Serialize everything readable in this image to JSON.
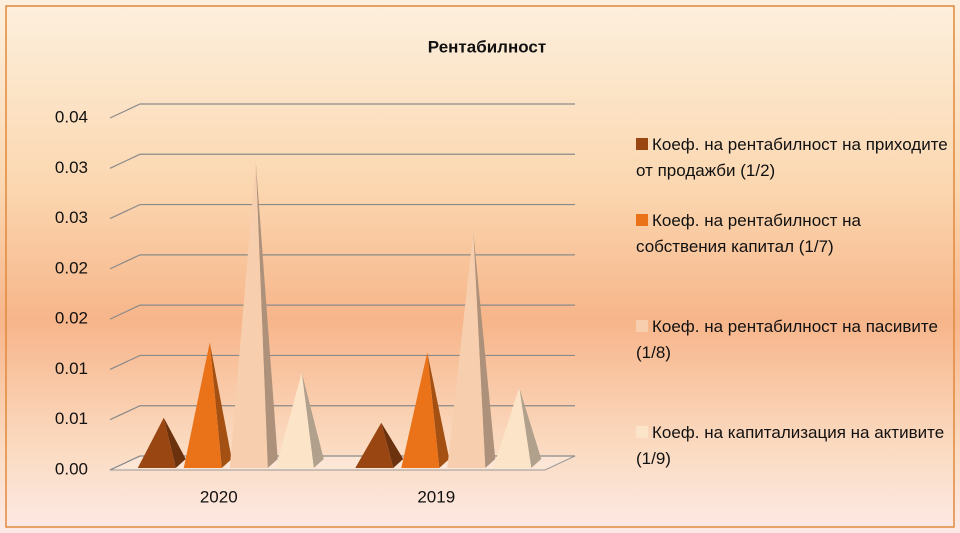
{
  "chart_data": {
    "type": "pyramid3d",
    "title": "Рентабилност",
    "categories": [
      "2020",
      "2019"
    ],
    "series": [
      {
        "name": "Коеф. на рентабилност на приходите от продажби (1/2)",
        "color": "#9a4612",
        "values": [
          0.0045,
          0.004
        ]
      },
      {
        "name": "Коеф. на рентабилност на собствения капитал (1/7)",
        "color": "#ea731a",
        "values": [
          0.012,
          0.011
        ]
      },
      {
        "name": "Коеф. на рентабилност на пасивите (1/8)",
        "color": "#f7cfae",
        "values": [
          0.03,
          0.023
        ]
      },
      {
        "name": "Коеф. на капитализация на активите (1/9)",
        "color": "#fbe4c8",
        "values": [
          0.009,
          0.0075
        ]
      }
    ],
    "ylim": [
      0,
      0.035
    ],
    "yticks": [
      {
        "value": 0,
        "label": "0.00"
      },
      {
        "value": 0.005,
        "label": "0.01"
      },
      0.01,
      {
        "value": 0.015,
        "label": "0.02"
      },
      0.02,
      {
        "value": 0.025,
        "label": "0.03"
      },
      0.03,
      {
        "value": 0.035,
        "label": "0.04"
      }
    ],
    "grid": true,
    "legend": "right"
  }
}
